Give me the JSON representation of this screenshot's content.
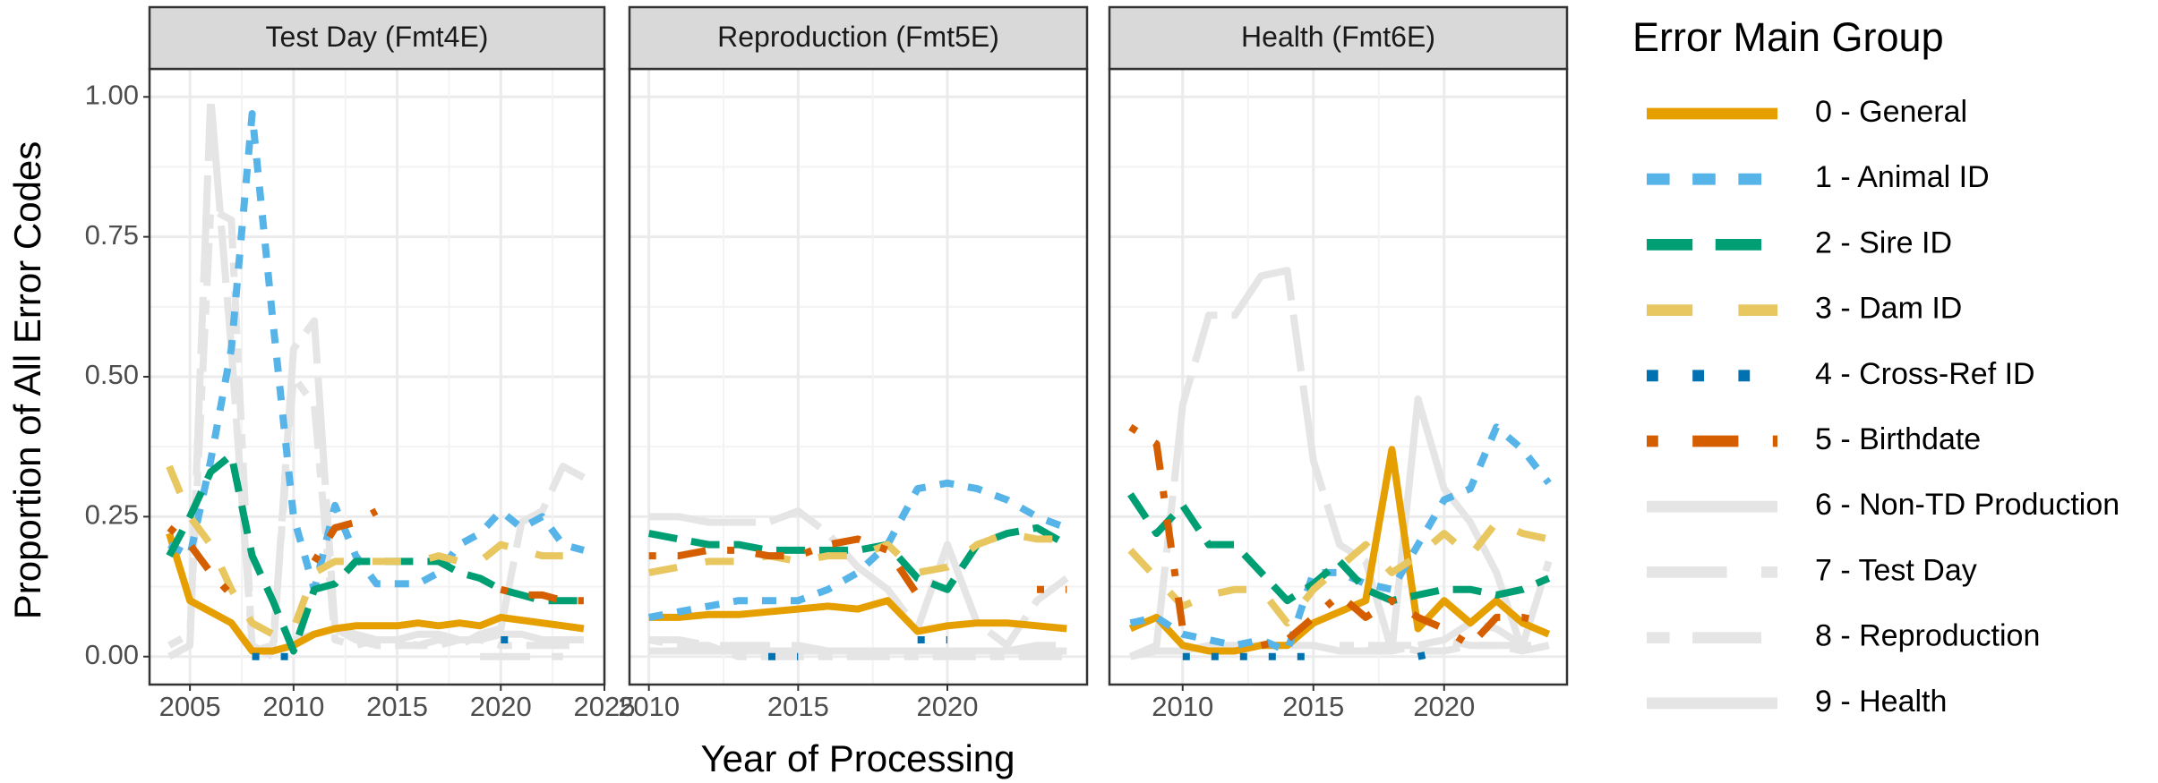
{
  "chart_data": {
    "type": "line",
    "x_label": "Year of Processing",
    "y_label": "Proportion of All Error Codes",
    "legend_title": "Error Main Group",
    "ylim": [
      -0.05,
      1.05
    ],
    "yticks": [
      {
        "value": 0,
        "label": "0.00"
      },
      {
        "value": 0.25,
        "label": "0.25"
      },
      {
        "value": 0.5,
        "label": "0.50"
      },
      {
        "value": 0.75,
        "label": "0.75"
      },
      {
        "value": 1,
        "label": "1.00"
      }
    ],
    "grid": true,
    "series": [
      {
        "name": "0 - General",
        "color": "#E69F00",
        "dash": "solid"
      },
      {
        "name": "1 - Animal ID",
        "color": "#56B4E9",
        "dash": "22"
      },
      {
        "name": "2 - Sire ID",
        "color": "#009E73",
        "dash": "42"
      },
      {
        "name": "3 - Dam ID",
        "color": "#E8C660",
        "dash": "44"
      },
      {
        "name": "4 - Cross-Ref ID",
        "color": "#0072B2",
        "dash": "13"
      },
      {
        "name": "5 - Birthdate",
        "color": "#D55E00",
        "dash": "1343"
      },
      {
        "name": "6 - Non-TD Production",
        "color": "#E5E5E5",
        "dash": "F282"
      },
      {
        "name": "7 - Test Day",
        "color": "#E5E5E5",
        "dash": "73"
      },
      {
        "name": "8 - Reproduction",
        "color": "#E5E5E5",
        "dash": "2262"
      },
      {
        "name": "9 - Health",
        "color": "#E5E5E5",
        "dash": "solid"
      }
    ],
    "panels": [
      {
        "title": "Test Day (Fmt4E)",
        "xlim": [
          2003.05,
          2025
        ],
        "xticks": [
          2005,
          2010,
          2015,
          2020,
          2025
        ],
        "x": [
          2004,
          2005,
          2006,
          2007,
          2008,
          2009,
          2010,
          2011,
          2012,
          2013,
          2014,
          2015,
          2016,
          2017,
          2018,
          2019,
          2020,
          2021,
          2022,
          2023,
          2024
        ],
        "values": [
          [
            0.22,
            0.1,
            0.08,
            0.06,
            0.01,
            0.01,
            0.02,
            0.04,
            0.05,
            0.055,
            0.055,
            0.055,
            0.06,
            0.055,
            0.06,
            0.055,
            0.07,
            0.065,
            0.06,
            0.055,
            0.05
          ],
          [
            0.2,
            0.18,
            0.35,
            0.55,
            0.97,
            0.6,
            0.25,
            0.12,
            0.27,
            0.18,
            0.13,
            0.13,
            0.13,
            0.15,
            0.2,
            0.22,
            0.26,
            0.23,
            0.25,
            0.2,
            0.19
          ],
          [
            0.18,
            0.25,
            0.33,
            0.36,
            0.18,
            0.1,
            0.01,
            0.12,
            0.13,
            0.17,
            0.17,
            0.17,
            0.17,
            0.17,
            0.15,
            0.14,
            0.12,
            0.11,
            0.1,
            0.1,
            0.1
          ],
          [
            0.34,
            0.25,
            0.2,
            0.12,
            0.06,
            0.04,
            0.05,
            0.15,
            0.17,
            0.17,
            0.17,
            0.17,
            0.17,
            0.18,
            0.17,
            0.17,
            0.2,
            0.19,
            0.18,
            0.18,
            null
          ],
          [
            null,
            0,
            null,
            null,
            0,
            0,
            0,
            null,
            null,
            0.03,
            null,
            0.03,
            null,
            null,
            null,
            null,
            0.03,
            0.03,
            null,
            null,
            0.03
          ],
          [
            0.23,
            0.2,
            0.15,
            0.11,
            null,
            null,
            null,
            0.17,
            0.23,
            0.24,
            0.26,
            null,
            0.25,
            null,
            null,
            null,
            0.12,
            0.11,
            0.11,
            0.1,
            0.1
          ],
          [
            0,
            0.02,
            1,
            0.55,
            0.02,
            0,
            0.55,
            0.6,
            0.05,
            0.03,
            0.02,
            0.02,
            0.02,
            0.03,
            0.02,
            0.04,
            0.05,
            0.24,
            0.26,
            0.34,
            0.32
          ],
          [
            null,
            null,
            null,
            null,
            null,
            null,
            null,
            null,
            null,
            null,
            null,
            null,
            null,
            null,
            null,
            0,
            0,
            0,
            0,
            0,
            null
          ],
          [
            0.02,
            0.04,
            0.8,
            0.78,
            0.01,
            0.02,
            0.5,
            0.45,
            0.03,
            0.02,
            0.03,
            0.03,
            0.02,
            0.02,
            0.03,
            0.03,
            0.02,
            0.02,
            0.02,
            0.02,
            0.02
          ],
          [
            null,
            null,
            null,
            null,
            null,
            null,
            0.03,
            0.04,
            0.05,
            0.04,
            0.03,
            0.03,
            0.04,
            0.04,
            0.03,
            0.03,
            0.04,
            0.04,
            0.03,
            0.03,
            0.03
          ]
        ]
      },
      {
        "title": "Reproduction (Fmt5E)",
        "xlim": [
          2009.35,
          2024.68
        ],
        "xticks": [
          2010,
          2015,
          2020
        ],
        "x": [
          2010,
          2011,
          2012,
          2013,
          2014,
          2015,
          2016,
          2017,
          2018,
          2019,
          2020,
          2021,
          2022,
          2023,
          2024
        ],
        "values": [
          [
            0.07,
            0.07,
            0.075,
            0.075,
            0.08,
            0.085,
            0.09,
            0.085,
            0.1,
            0.045,
            0.055,
            0.06,
            0.06,
            0.055,
            0.05
          ],
          [
            0.07,
            0.08,
            0.09,
            0.1,
            0.1,
            0.1,
            0.12,
            0.15,
            0.2,
            0.3,
            0.31,
            0.3,
            0.28,
            0.25,
            0.23
          ],
          [
            0.22,
            0.21,
            0.2,
            0.2,
            0.19,
            0.19,
            0.19,
            0.19,
            0.2,
            0.14,
            0.12,
            0.2,
            0.22,
            0.23,
            0.2
          ],
          [
            0.15,
            0.16,
            0.17,
            0.17,
            0.18,
            0.17,
            0.18,
            0.18,
            0.2,
            0.15,
            0.16,
            0.2,
            0.22,
            0.21,
            0.21
          ],
          [
            0,
            null,
            null,
            null,
            0,
            0,
            null,
            null,
            null,
            0.03,
            0.03,
            null,
            null,
            null,
            0.02
          ],
          [
            0.18,
            0.18,
            0.19,
            0.19,
            0.18,
            0.18,
            0.2,
            0.21,
            0.19,
            0.11,
            null,
            null,
            null,
            0.12,
            0.12
          ],
          [
            0.25,
            0.25,
            0.24,
            0.24,
            0.24,
            0.26,
            0.22,
            0.16,
            0.12,
            0.05,
            0.2,
            0.06,
            0.02,
            0.1,
            0.14
          ],
          [
            0.03,
            0.03,
            0.02,
            0.02,
            0.02,
            0.02,
            0.01,
            0.01,
            0.01,
            0.01,
            0.01,
            0.01,
            0.01,
            0.02,
            0.02
          ],
          [
            0.03,
            0.02,
            0.02,
            0,
            0,
            0,
            0,
            0,
            0,
            0,
            0,
            0,
            0,
            0,
            0
          ],
          [
            0.01,
            0.01,
            0.01,
            0.01,
            0.01,
            0.01,
            0.01,
            0.01,
            0.01,
            0.01,
            0.01,
            0.01,
            0.01,
            0.01,
            0.01
          ]
        ]
      },
      {
        "title": "Health (Fmt6E)",
        "xlim": [
          2007.2,
          2024.7
        ],
        "xticks": [
          2010,
          2015,
          2020
        ],
        "x": [
          2008,
          2009,
          2010,
          2011,
          2012,
          2013,
          2014,
          2015,
          2016,
          2017,
          2018,
          2019,
          2020,
          2021,
          2022,
          2023,
          2024
        ],
        "values": [
          [
            0.05,
            0.07,
            0.02,
            0.01,
            0.01,
            0.02,
            0.02,
            0.06,
            0.08,
            0.1,
            0.37,
            0.05,
            0.1,
            0.06,
            0.1,
            0.06,
            0.04
          ],
          [
            0.06,
            0.07,
            0.04,
            0.03,
            0.02,
            0.03,
            0.01,
            0.15,
            0.15,
            0.13,
            0.12,
            0.2,
            0.28,
            0.3,
            0.41,
            0.37,
            0.31
          ],
          [
            0.29,
            0.22,
            0.27,
            0.2,
            0.2,
            0.15,
            0.1,
            0.13,
            0.17,
            0.12,
            0.1,
            0.11,
            0.12,
            0.12,
            0.11,
            0.12,
            0.14
          ],
          [
            0.19,
            0.14,
            0.09,
            0.11,
            0.12,
            0.12,
            0.06,
            0.12,
            0.16,
            0.2,
            0.15,
            0.18,
            0.22,
            0.18,
            0.24,
            0.22,
            0.21
          ],
          [
            0,
            null,
            0,
            0,
            0,
            0,
            0,
            0,
            null,
            null,
            null,
            0,
            0.01,
            null,
            null,
            null,
            0.02
          ],
          [
            0.41,
            0.38,
            0.05,
            null,
            null,
            0.02,
            0.03,
            0.07,
            0.11,
            0.07,
            0.1,
            0.07,
            0.05,
            0.02,
            0.07,
            0.07,
            0.06
          ],
          [
            0,
            0.02,
            0.45,
            0.61,
            0.61,
            0.68,
            0.69,
            0.35,
            0.2,
            0.17,
            0.01,
            0.02,
            0.03,
            0.06,
            0.05,
            0.02,
            0.17
          ],
          [
            null,
            null,
            null,
            null,
            null,
            null,
            null,
            null,
            0.01,
            0.01,
            0.02,
            0.01,
            0.01,
            0.02,
            0.02,
            0.02,
            0.02
          ],
          [
            null,
            null,
            null,
            null,
            null,
            null,
            null,
            null,
            0.02,
            0.02,
            0.02,
            0.02,
            0.03,
            0.02,
            0.02,
            0.01,
            0.02
          ],
          [
            0,
            0.01,
            0.01,
            0.02,
            0.02,
            0.02,
            0.02,
            0.02,
            0.01,
            0.01,
            0.01,
            0.46,
            0.3,
            0.24,
            0.15,
            0.01,
            0.02
          ]
        ]
      }
    ]
  }
}
